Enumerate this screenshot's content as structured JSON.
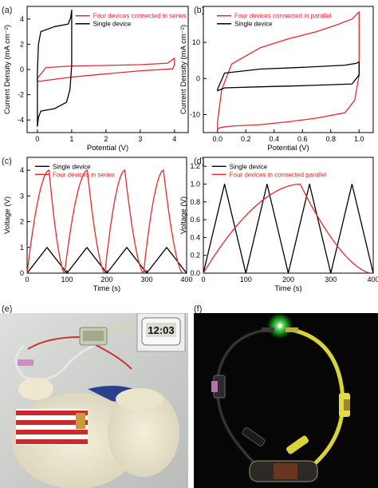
{
  "panels": {
    "a": {
      "label": "(a)",
      "chart_data": {
        "type": "line",
        "xlabel": "Potential (V)",
        "ylabel": "Current Density (mA cm⁻²)",
        "xlim": [
          -0.3,
          4.4
        ],
        "ylim": [
          -5,
          5
        ],
        "xticks": [
          0,
          1,
          2,
          3,
          4
        ],
        "yticks": [
          -4,
          -2,
          0,
          2,
          4
        ],
        "legend_position": "top-right",
        "series": [
          {
            "name": "Four devices connected in series",
            "color": "#e8282b",
            "x": [
              0.0,
              0.25,
              1.0,
              2.0,
              3.0,
              3.8,
              4.0,
              4.0,
              3.95,
              3.0,
              2.0,
              1.0,
              0.3,
              0.05,
              0.0,
              0.0
            ],
            "y": [
              -0.7,
              0.15,
              0.28,
              0.32,
              0.38,
              0.5,
              0.9,
              0.4,
              0.05,
              -0.1,
              -0.35,
              -0.6,
              -0.85,
              -0.95,
              -0.85,
              -0.7
            ]
          },
          {
            "name": "Single device",
            "color": "#000000",
            "x": [
              0.0,
              0.03,
              0.1,
              0.5,
              0.9,
              0.97,
              1.0,
              1.0,
              0.95,
              0.85,
              0.5,
              0.1,
              0.03,
              0.0,
              0.0
            ],
            "y": [
              -0.2,
              2.0,
              3.0,
              3.4,
              3.6,
              4.1,
              4.7,
              0.3,
              -1.6,
              -2.6,
              -3.1,
              -3.3,
              -3.8,
              -4.5,
              -0.2
            ]
          }
        ]
      }
    },
    "b": {
      "label": "(b)",
      "chart_data": {
        "type": "line",
        "xlabel": "Potential (V)",
        "ylabel": "Current Density (mA cm⁻²)",
        "xlim": [
          -0.1,
          1.1
        ],
        "ylim": [
          -15,
          20
        ],
        "xticks": [
          0.0,
          0.2,
          0.4,
          0.6,
          0.8,
          1.0
        ],
        "xtick_labels": [
          "0.0",
          "0.2",
          "0.4",
          "0.6",
          "0.8",
          "1.0"
        ],
        "yticks": [
          -10,
          0,
          10
        ],
        "legend_position": "top-left",
        "series": [
          {
            "name": "Four devices connected in parallel",
            "color": "#e8282b",
            "x": [
              0.0,
              0.03,
              0.1,
              0.3,
              0.5,
              0.7,
              0.85,
              0.95,
              1.0,
              1.0,
              0.97,
              0.9,
              0.7,
              0.5,
              0.3,
              0.1,
              0.02,
              0.0,
              0.0
            ],
            "y": [
              -12,
              -3,
              4.0,
              8.5,
              11.0,
              13.0,
              15.0,
              16.5,
              18.5,
              1.0,
              -6.0,
              -9.5,
              -11.0,
              -12.0,
              -12.8,
              -13.2,
              -13.6,
              -14.0,
              -12
            ]
          },
          {
            "name": "Single device",
            "color": "#000000",
            "x": [
              0.0,
              0.05,
              0.3,
              0.6,
              0.9,
              0.98,
              1.0,
              1.0,
              0.95,
              0.6,
              0.3,
              0.05,
              0.0,
              0.0
            ],
            "y": [
              -3.0,
              1.5,
              2.6,
              3.1,
              3.7,
              4.2,
              4.6,
              1.0,
              -1.5,
              -2.0,
              -2.3,
              -2.6,
              -3.4,
              -3.0
            ]
          }
        ]
      }
    },
    "c": {
      "label": "(c)",
      "chart_data": {
        "type": "line",
        "xlabel": "Time (s)",
        "ylabel": "Voltage (V)",
        "xlim": [
          0,
          400
        ],
        "ylim": [
          0,
          4.5
        ],
        "xticks": [
          0,
          100,
          200,
          300,
          400
        ],
        "yticks": [
          0,
          1,
          2,
          3,
          4
        ],
        "legend_position": "top-left",
        "series": [
          {
            "name": "Single device",
            "color": "#000000",
            "x": [
              0,
              50,
              100,
              150,
              200,
              250,
              300,
              350,
              400
            ],
            "y": [
              0,
              1,
              0,
              1,
              0,
              1,
              0,
              1,
              0
            ]
          },
          {
            "name": "Four devices in series",
            "color": "#e8282b",
            "shape": "charge-discharge",
            "cycle_starts": [
              0,
              94,
              195,
              292
            ],
            "cycle_peaks": [
              55,
              151,
              245,
              342
            ],
            "cycle_ends": [
              94,
              195,
              292,
              390
            ],
            "peak": 4.0
          }
        ]
      }
    },
    "d": {
      "label": "(d)",
      "chart_data": {
        "type": "line",
        "xlabel": "Time (s)",
        "ylabel": "Voltage (V)",
        "xlim": [
          0,
          400
        ],
        "ylim": [
          0,
          1.3
        ],
        "xticks": [
          0,
          100,
          200,
          300,
          400
        ],
        "yticks": [
          0.0,
          0.2,
          0.4,
          0.6,
          0.8,
          1.0,
          1.2
        ],
        "ytick_labels": [
          "0.0",
          "0.2",
          "0.4",
          "0.6",
          "0.8",
          "1.0",
          "1.2"
        ],
        "legend_position": "top-left",
        "series": [
          {
            "name": "Single device",
            "color": "#000000",
            "x": [
              0,
              50,
              100,
              150,
              200,
              250,
              300,
              350,
              400
            ],
            "y": [
              0,
              1,
              0,
              1,
              0,
              1,
              0,
              1,
              0
            ]
          },
          {
            "name": "Four devices in connected parallel",
            "color": "#e8282b",
            "shape": "charge-discharge",
            "cycle_starts": [
              0
            ],
            "cycle_peaks": [
              228
            ],
            "cycle_ends": [
              395
            ],
            "peak": 1.0
          }
        ]
      }
    }
  },
  "photos": {
    "e": {
      "label": "(e)",
      "clock_text": "12:03",
      "icon": "toy-lamb-with-timer-photo"
    },
    "f": {
      "label": "(f)",
      "icon": "led-circuit-photo"
    }
  }
}
